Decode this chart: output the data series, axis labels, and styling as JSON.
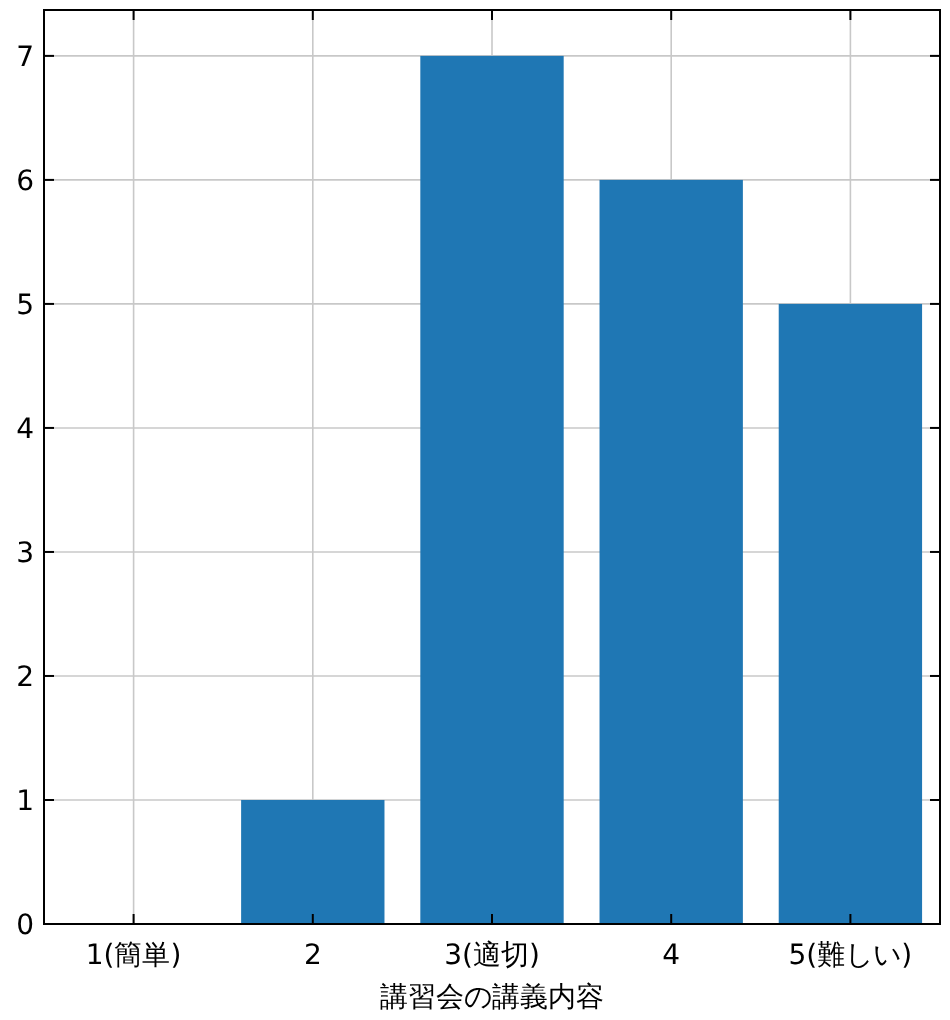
{
  "chart_data": {
    "type": "bar",
    "xlabel": "講習会の講義内容",
    "categories": [
      "1(簡単)",
      "2",
      "3(適切)",
      "4",
      "5(難しい)"
    ],
    "values": [
      0,
      1,
      7,
      6,
      5
    ],
    "color": "#1f77b4",
    "ylim": [
      0,
      7.37
    ],
    "yticks": [
      0,
      1,
      2,
      3,
      4,
      5,
      6,
      7
    ],
    "grid": true
  }
}
